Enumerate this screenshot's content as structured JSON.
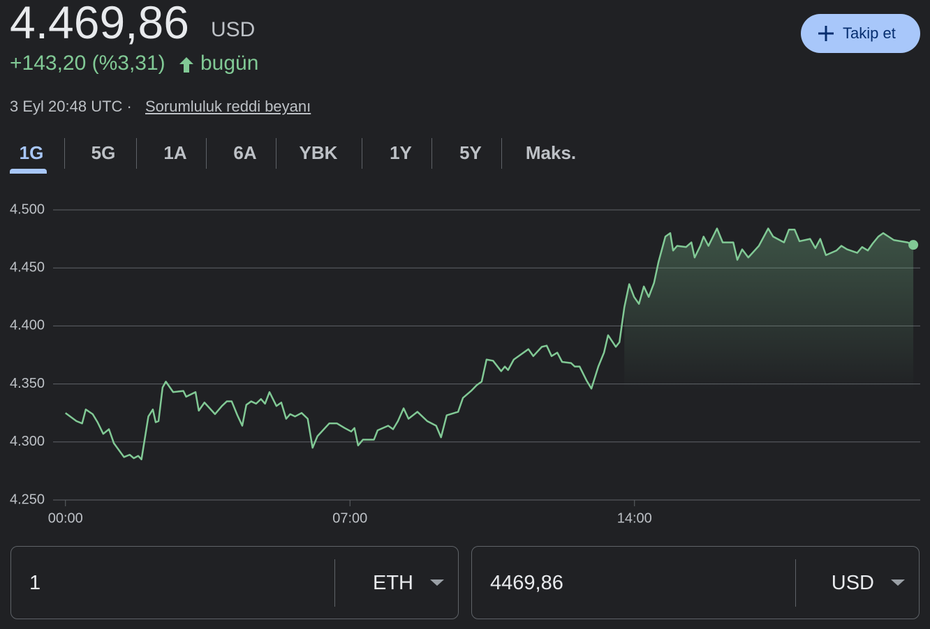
{
  "header": {
    "price": "4.469,86",
    "currency": "USD",
    "change": "+143,20 (%3,31)",
    "change_period": "bugün",
    "timestamp": "3 Eyl 20:48 UTC",
    "separator": "·",
    "disclaimer": "Sorumluluk reddi beyanı",
    "follow_button": "Takip et"
  },
  "tabs": [
    "1G",
    "5G",
    "1A",
    "6A",
    "YBK",
    "1Y",
    "5Y",
    "Maks."
  ],
  "selected_tab": 0,
  "chart_data": {
    "type": "line",
    "color": "#81c995",
    "grid": true,
    "x": [
      0,
      0.27,
      0.41,
      0.5,
      0.67,
      0.79,
      0.93,
      1.07,
      1.19,
      1.44,
      1.58,
      1.68,
      1.79,
      1.87,
      2.04,
      2.15,
      2.22,
      2.29,
      2.39,
      2.47,
      2.65,
      2.9,
      2.97,
      3.2,
      3.28,
      3.42,
      3.68,
      3.85,
      3.97,
      4.09,
      4.23,
      4.35,
      4.45,
      4.57,
      4.69,
      4.81,
      4.91,
      5.02,
      5.19,
      5.31,
      5.43,
      5.53,
      5.65,
      5.81,
      5.96,
      6.08,
      6.2,
      6.49,
      6.68,
      6.87,
      7.03,
      7.11,
      7.2,
      7.32,
      7.59,
      7.68,
      7.94,
      8.06,
      8.18,
      8.32,
      8.44,
      8.66,
      8.9,
      9.12,
      9.24,
      9.38,
      9.66,
      9.78,
      9.98,
      10.12,
      10.24,
      10.36,
      10.52,
      10.72,
      10.81,
      10.89,
      11.03,
      11.27,
      11.39,
      11.51,
      11.72,
      11.84,
      11.96,
      12.1,
      12.22,
      12.44,
      12.53,
      12.65,
      12.82,
      12.94,
      13.11,
      13.25,
      13.35,
      13.54,
      13.63,
      13.75,
      13.87,
      13.99,
      14.11,
      14.23,
      14.35,
      14.48,
      14.59,
      14.76,
      14.88,
      14.95,
      15.05,
      15.27,
      15.4,
      15.48,
      15.62,
      15.7,
      15.82,
      16.03,
      16.17,
      16.43,
      16.53,
      16.65,
      16.8,
      17.06,
      17.29,
      17.41,
      17.68,
      17.8,
      17.94,
      18.06,
      18.32,
      18.45,
      18.57,
      18.71,
      18.97,
      19.09,
      19.23,
      19.48,
      19.6,
      19.74,
      19.86,
      20.0,
      20.12,
      20.38,
      20.72,
      20.86
    ],
    "values": [
      4325,
      4318,
      4316,
      4328,
      4324,
      4317,
      4307,
      4311,
      4299,
      4287,
      4289,
      4286,
      4288,
      4285,
      4322,
      4328,
      4317,
      4318,
      4347,
      4352,
      4343,
      4344,
      4339,
      4343,
      4327,
      4334,
      4324,
      4331,
      4335,
      4335,
      4323,
      4314,
      4332,
      4335,
      4333,
      4337,
      4333,
      4343,
      4331,
      4334,
      4320,
      4324,
      4322,
      4325,
      4320,
      4295,
      4305,
      4316,
      4316,
      4312,
      4309,
      4312,
      4297,
      4302,
      4302,
      4310,
      4314,
      4311,
      4318,
      4329,
      4320,
      4326,
      4318,
      4314,
      4304,
      4323,
      4326,
      4338,
      4344,
      4349,
      4352,
      4371,
      4370,
      4361,
      4365,
      4362,
      4371,
      4377,
      4380,
      4374,
      4382,
      4383,
      4374,
      4377,
      4369,
      4368,
      4365,
      4365,
      4353,
      4346,
      4365,
      4377,
      4392,
      4382,
      4386,
      4416,
      4436,
      4425,
      4419,
      4434,
      4425,
      4437,
      4455,
      4477,
      4480,
      4465,
      4469,
      4468,
      4472,
      4459,
      4469,
      4477,
      4469,
      4484,
      4472,
      4472,
      4457,
      4466,
      4459,
      4469,
      4484,
      4477,
      4472,
      4483,
      4483,
      4473,
      4475,
      4467,
      4475,
      4461,
      4465,
      4469,
      4466,
      4463,
      4468,
      4465,
      4471,
      4477,
      4480,
      4474,
      4472,
      4469.86
    ],
    "xlim": [
      -1.37,
      21.03
    ],
    "xticks": [
      {
        "value": 0,
        "label": "00:00"
      },
      {
        "value": 7,
        "label": "07:00"
      },
      {
        "value": 14,
        "label": "14:00"
      }
    ],
    "ylim": [
      4250,
      4500
    ],
    "yticks": [
      {
        "value": 4250,
        "label": "4.250"
      },
      {
        "value": 4300,
        "label": "4.300"
      },
      {
        "value": 4350,
        "label": "4.350"
      },
      {
        "value": 4400,
        "label": "4.400"
      },
      {
        "value": 4450,
        "label": "4.450"
      },
      {
        "value": 4500,
        "label": "4.500"
      }
    ]
  },
  "converter": {
    "from_amount": "1",
    "from_unit": "ETH",
    "to_amount": "4469,86",
    "to_unit": "USD"
  }
}
